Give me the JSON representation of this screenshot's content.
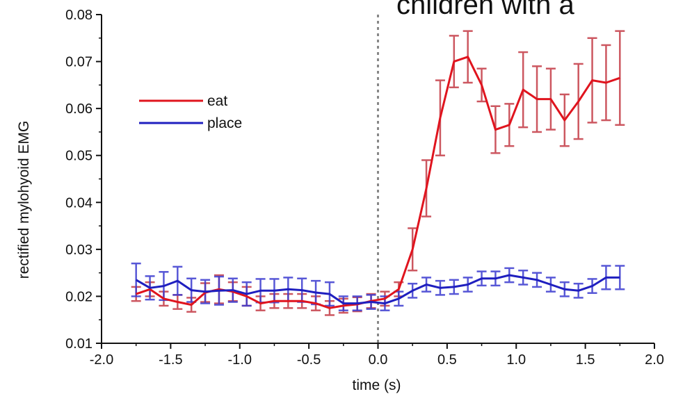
{
  "chart_data": {
    "type": "line",
    "title": "children with a",
    "xlabel": "time (s)",
    "ylabel": "rectified mylohyoid EMG",
    "xlim": [
      -2.0,
      2.0
    ],
    "ylim": [
      0.01,
      0.08
    ],
    "x_ticks": [
      "-2.0",
      "-1.5",
      "-1.0",
      "-0.5",
      "0.0",
      "0.5",
      "1.0",
      "1.5",
      "2.0"
    ],
    "y_ticks": [
      "0.01",
      "0.02",
      "0.03",
      "0.04",
      "0.05",
      "0.06",
      "0.07",
      "0.08"
    ],
    "vline_x": 0.0,
    "legend_position": "top-left",
    "grid": false,
    "x": [
      -1.75,
      -1.65,
      -1.55,
      -1.45,
      -1.35,
      -1.25,
      -1.15,
      -1.05,
      -0.95,
      -0.85,
      -0.75,
      -0.65,
      -0.55,
      -0.45,
      -0.35,
      -0.25,
      -0.15,
      -0.05,
      0.05,
      0.15,
      0.25,
      0.35,
      0.45,
      0.55,
      0.65,
      0.75,
      0.85,
      0.95,
      1.05,
      1.15,
      1.25,
      1.35,
      1.45,
      1.55,
      1.65,
      1.75
    ],
    "series": [
      {
        "name": "eat",
        "color": "#e0141e",
        "values": [
          0.0205,
          0.0215,
          0.0195,
          0.0188,
          0.0182,
          0.0208,
          0.0215,
          0.021,
          0.02,
          0.0185,
          0.019,
          0.019,
          0.019,
          0.0185,
          0.0175,
          0.018,
          0.0183,
          0.019,
          0.0195,
          0.0215,
          0.03,
          0.043,
          0.058,
          0.07,
          0.071,
          0.065,
          0.0555,
          0.0565,
          0.064,
          0.062,
          0.062,
          0.0575,
          0.0615,
          0.066,
          0.0655,
          0.0665
        ],
        "errors": [
          0.0015,
          0.0015,
          0.0015,
          0.0015,
          0.0015,
          0.002,
          0.003,
          0.002,
          0.002,
          0.0015,
          0.0015,
          0.0015,
          0.0015,
          0.0015,
          0.0015,
          0.0015,
          0.0015,
          0.0015,
          0.0015,
          0.0015,
          0.0045,
          0.006,
          0.008,
          0.0055,
          0.0055,
          0.0035,
          0.005,
          0.0045,
          0.008,
          0.007,
          0.0065,
          0.0055,
          0.008,
          0.009,
          0.008,
          0.01
        ]
      },
      {
        "name": "place",
        "color": "#1f1fbf",
        "values": [
          0.0235,
          0.0218,
          0.0222,
          0.0233,
          0.0213,
          0.021,
          0.0212,
          0.0213,
          0.0205,
          0.0212,
          0.0212,
          0.0215,
          0.0213,
          0.0208,
          0.0205,
          0.0185,
          0.0185,
          0.0188,
          0.0185,
          0.0195,
          0.0212,
          0.0225,
          0.0218,
          0.022,
          0.0225,
          0.0238,
          0.0238,
          0.0245,
          0.024,
          0.0235,
          0.0225,
          0.0215,
          0.0212,
          0.0222,
          0.024,
          0.024
        ],
        "errors": [
          0.0035,
          0.0025,
          0.003,
          0.003,
          0.0025,
          0.0025,
          0.003,
          0.0025,
          0.0025,
          0.0025,
          0.0025,
          0.0025,
          0.0025,
          0.0025,
          0.0025,
          0.0015,
          0.0015,
          0.0015,
          0.0015,
          0.0015,
          0.0015,
          0.0015,
          0.0015,
          0.0015,
          0.0015,
          0.0015,
          0.0015,
          0.0015,
          0.0015,
          0.0015,
          0.0015,
          0.0015,
          0.0015,
          0.0015,
          0.0025,
          0.0025
        ]
      }
    ]
  }
}
